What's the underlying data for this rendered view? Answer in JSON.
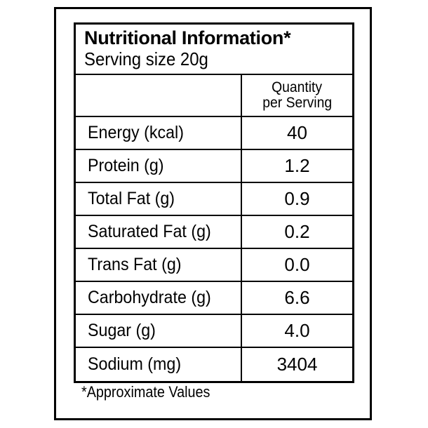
{
  "panel": {
    "title": "Nutritional Information*",
    "serving_size": "Serving size 20g"
  },
  "table": {
    "column_header_line1": "Quantity",
    "column_header_line2": "per Serving",
    "rows": [
      {
        "nutrient": "Energy (kcal)",
        "value": "40"
      },
      {
        "nutrient": "Protein (g)",
        "value": "1.2"
      },
      {
        "nutrient": "Total Fat (g)",
        "value": "0.9"
      },
      {
        "nutrient": "Saturated Fat (g)",
        "value": "0.2"
      },
      {
        "nutrient": "Trans Fat (g)",
        "value": "0.0"
      },
      {
        "nutrient": "Carbohydrate (g)",
        "value": "6.6"
      },
      {
        "nutrient": "Sugar (g)",
        "value": "4.0"
      },
      {
        "nutrient": "Sodium (mg)",
        "value": "3404"
      }
    ]
  },
  "footnote": "*Approximate Values",
  "colors": {
    "ink": "#000000",
    "background": "#ffffff"
  }
}
